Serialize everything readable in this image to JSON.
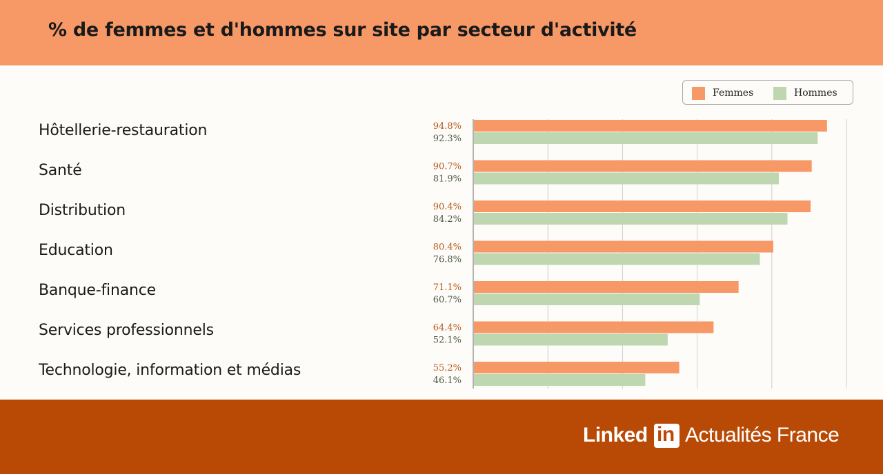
{
  "header": {
    "title": "% de femmes et d'hommes sur site par secteur d'activité"
  },
  "colors": {
    "header_bg": "#f79966",
    "footer_bg": "#b94a06",
    "femmes": "#f79966",
    "hommes": "#bed7b0",
    "femmes_label": "#b85a17",
    "hommes_label": "#4d5a45"
  },
  "legend": {
    "femmes": "Femmes",
    "hommes": "Hommes",
    "placement": "top-right"
  },
  "chart_data": {
    "type": "bar",
    "orientation": "horizontal",
    "title": "% de femmes et d'hommes sur site par secteur d'activité",
    "categories": [
      "Hôtellerie-restauration",
      "Santé",
      "Distribution",
      "Education",
      "Banque-finance",
      "Services professionnels",
      "Technologie, information et médias"
    ],
    "series": [
      {
        "name": "Femmes",
        "values": [
          94.8,
          90.7,
          90.4,
          80.4,
          71.1,
          64.4,
          55.2
        ],
        "labels": [
          "94.8%",
          "90.7%",
          "90.4%",
          "80.4%",
          "71.1%",
          "64.4%",
          "55.2%"
        ]
      },
      {
        "name": "Hommes",
        "values": [
          92.3,
          81.9,
          84.2,
          76.8,
          60.7,
          52.1,
          46.1
        ],
        "labels": [
          "92.3%",
          "81.9%",
          "84.2%",
          "76.8%",
          "60.7%",
          "52.1%",
          "46.1%"
        ]
      }
    ],
    "xlim": [
      0,
      100
    ],
    "grid": true,
    "gridlines_at": [
      0,
      20,
      40,
      60,
      80,
      100
    ]
  },
  "footer": {
    "brand_linked": "Linked",
    "brand_in": "in",
    "brand_suffix": "Actualités France"
  }
}
